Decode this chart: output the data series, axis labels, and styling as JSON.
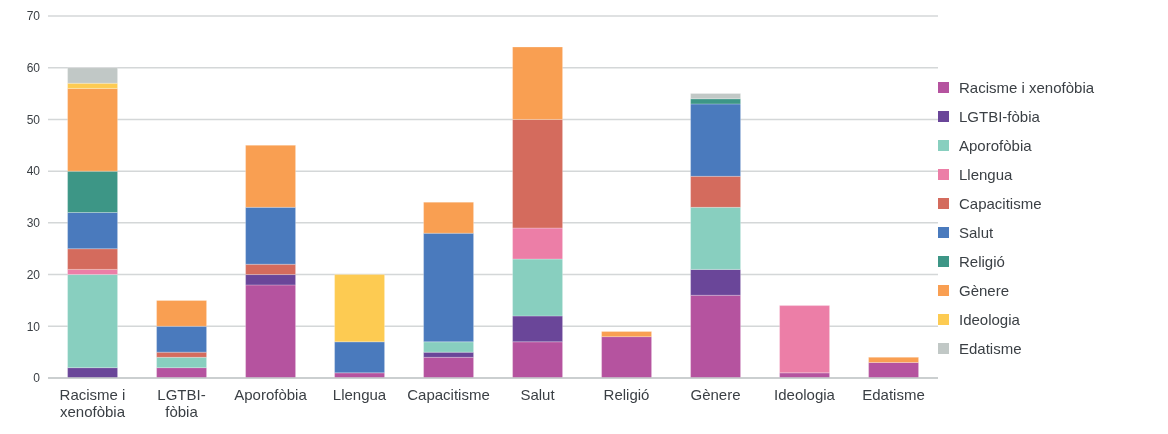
{
  "chart_data": {
    "type": "bar",
    "stacked": true,
    "categories": [
      "Racisme i xenofòbia",
      "LGTBI-fòbia",
      "Aporofòbia",
      "Llengua",
      "Capacitisme",
      "Salut",
      "Religió",
      "Gènere",
      "Ideologia",
      "Edatisme"
    ],
    "series": [
      {
        "name": "Racisme i xenofòbia",
        "color": "#b5539f",
        "values": [
          0,
          2,
          18,
          1,
          4,
          7,
          8,
          16,
          1,
          3
        ]
      },
      {
        "name": "LGTBI-fòbia",
        "color": "#6a4699",
        "values": [
          2,
          0,
          2,
          0,
          1,
          5,
          0,
          5,
          0,
          0
        ]
      },
      {
        "name": "Aporofòbia",
        "color": "#88cfbf",
        "values": [
          18,
          2,
          0,
          0,
          2,
          11,
          0,
          12,
          0,
          0
        ]
      },
      {
        "name": "Llengua",
        "color": "#ec7ea7",
        "values": [
          1,
          0,
          0,
          0,
          0,
          6,
          0,
          0,
          13,
          0
        ]
      },
      {
        "name": "Capacitisme",
        "color": "#d46b5d",
        "values": [
          4,
          1,
          2,
          0,
          0,
          21,
          0,
          6,
          0,
          0
        ]
      },
      {
        "name": "Salut",
        "color": "#4a7abd",
        "values": [
          7,
          5,
          11,
          6,
          21,
          0,
          0,
          14,
          0,
          0
        ]
      },
      {
        "name": "Religió",
        "color": "#3d9686",
        "values": [
          8,
          0,
          0,
          0,
          0,
          0,
          0,
          1,
          0,
          0
        ]
      },
      {
        "name": "Gènere",
        "color": "#f99f52",
        "values": [
          16,
          5,
          12,
          0,
          6,
          14,
          1,
          0,
          0,
          1
        ]
      },
      {
        "name": "Ideologia",
        "color": "#fdcb52",
        "values": [
          1,
          0,
          0,
          13,
          0,
          0,
          0,
          0,
          0,
          0
        ]
      },
      {
        "name": "Edatisme",
        "color": "#c1c8c6",
        "values": [
          3,
          0,
          0,
          0,
          0,
          0,
          0,
          1,
          0,
          0
        ]
      }
    ],
    "ylim": [
      0,
      70
    ],
    "yticks": [
      0,
      10,
      20,
      30,
      40,
      50,
      60,
      70
    ],
    "grid": "y",
    "legend": "right"
  }
}
